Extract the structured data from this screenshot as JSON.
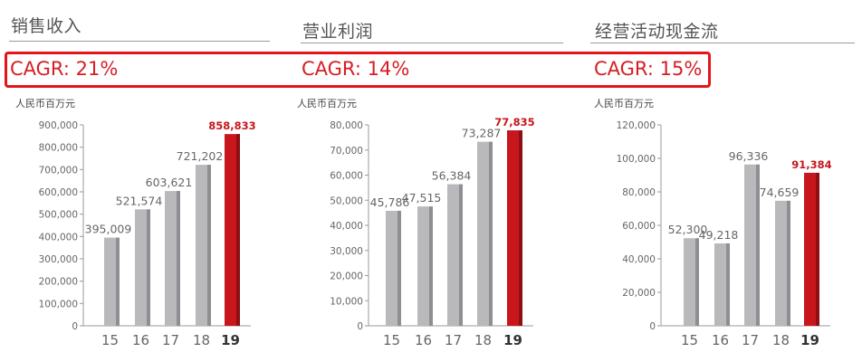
{
  "headings": [
    "销售收入",
    "营业利润",
    "经营活动现金流"
  ],
  "cagr": [
    "CAGR: 21%",
    "CAGR: 14%",
    "CAGR: 15%"
  ],
  "colors": {
    "bar": "#b9b9bc",
    "bar_side": "#8f8f93",
    "highlight": "#c8161d",
    "highlight_side": "#8d0f13",
    "cagr_border": "#e4141b"
  },
  "chart_data": [
    {
      "type": "bar",
      "unit": "人民币百万元",
      "categories": [
        "15",
        "16",
        "17",
        "18",
        "19"
      ],
      "values": [
        395009,
        521574,
        603621,
        721202,
        858833
      ],
      "value_labels": [
        "395,009",
        "521,574",
        "603,621",
        "721,202",
        "858,833"
      ],
      "ylim": [
        0,
        900000
      ],
      "yticks": [
        "0",
        "100,000",
        "200,000",
        "300,000",
        "400,000",
        "500,000",
        "600,000",
        "700,000",
        "800,000",
        "900,000"
      ],
      "highlight_index": 4
    },
    {
      "type": "bar",
      "unit": "人民币百万元",
      "categories": [
        "15",
        "16",
        "17",
        "18",
        "19"
      ],
      "values": [
        45786,
        47515,
        56384,
        73287,
        77835
      ],
      "value_labels": [
        "45,786",
        "47,515",
        "56,384",
        "73,287",
        "77,835"
      ],
      "ylim": [
        0,
        80000
      ],
      "yticks": [
        "0",
        "10,000",
        "20,000",
        "30,000",
        "40,000",
        "50,000",
        "60,000",
        "70,000",
        "80,000"
      ],
      "highlight_index": 4
    },
    {
      "type": "bar",
      "unit": "人民币百万元",
      "categories": [
        "15",
        "16",
        "17",
        "18",
        "19"
      ],
      "values": [
        52300,
        49218,
        96336,
        74659,
        91384
      ],
      "value_labels": [
        "52,300",
        "49,218",
        "96,336",
        "74,659",
        "91,384"
      ],
      "ylim": [
        0,
        120000
      ],
      "yticks": [
        "0",
        "20,000",
        "40,000",
        "60,000",
        "80,000",
        "100,000",
        "120,000"
      ],
      "highlight_index": 4
    }
  ]
}
